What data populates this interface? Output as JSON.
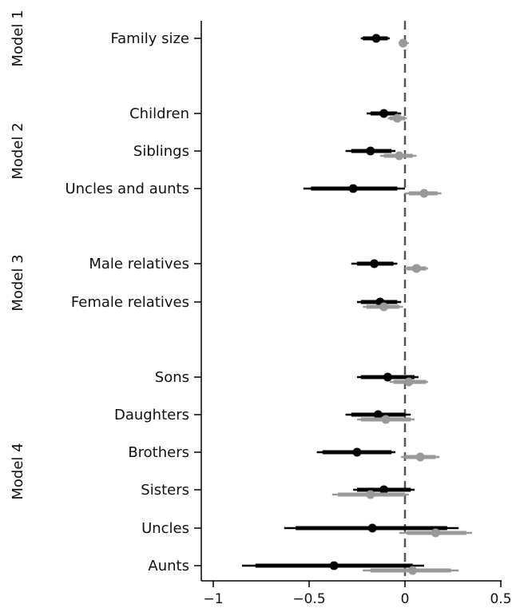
{
  "chart_data": {
    "type": "coefficient-plot",
    "xlim": [
      -1.0,
      0.5
    ],
    "x_ticks": [
      -1,
      -0.5,
      0,
      0.5
    ],
    "x_tick_labels": [
      "−1",
      "−0.5",
      "0",
      "0.5"
    ],
    "reference_line_x": 0,
    "series": [
      {
        "color": "#000000"
      },
      {
        "color": "#999999"
      }
    ],
    "models": [
      {
        "label": "Model 1",
        "rows": [
          "Family size"
        ]
      },
      {
        "label": "Model 2",
        "rows": [
          "Children",
          "Siblings",
          "Uncles and aunts"
        ]
      },
      {
        "label": "Model 3",
        "rows": [
          "Male relatives",
          "Female relatives"
        ]
      },
      {
        "label": "Model 4",
        "rows": [
          "Sons",
          "Daughters",
          "Brothers",
          "Sisters",
          "Uncles",
          "Aunts"
        ]
      }
    ],
    "rows": [
      {
        "label": "Family size",
        "estimates": [
          {
            "est": -0.15,
            "ci90": [
              -0.22,
              -0.09
            ],
            "ci95": [
              -0.23,
              -0.08
            ]
          },
          {
            "est": -0.01,
            "ci90": [
              -0.02,
              0.01
            ],
            "ci95": [
              -0.03,
              0.02
            ]
          }
        ]
      },
      {
        "label": "Children",
        "estimates": [
          {
            "est": -0.11,
            "ci90": [
              -0.18,
              -0.04
            ],
            "ci95": [
              -0.2,
              -0.02
            ]
          },
          {
            "est": -0.04,
            "ci90": [
              -0.08,
              0.0
            ],
            "ci95": [
              -0.09,
              0.01
            ]
          }
        ]
      },
      {
        "label": "Siblings",
        "estimates": [
          {
            "est": -0.18,
            "ci90": [
              -0.28,
              -0.07
            ],
            "ci95": [
              -0.31,
              -0.05
            ]
          },
          {
            "est": -0.03,
            "ci90": [
              -0.11,
              0.04
            ],
            "ci95": [
              -0.13,
              0.06
            ]
          }
        ]
      },
      {
        "label": "Uncles and aunts",
        "estimates": [
          {
            "est": -0.27,
            "ci90": [
              -0.49,
              -0.04
            ],
            "ci95": [
              -0.53,
              0.0
            ]
          },
          {
            "est": 0.1,
            "ci90": [
              0.02,
              0.17
            ],
            "ci95": [
              0.0,
              0.19
            ]
          }
        ]
      },
      {
        "label": "Male relatives",
        "estimates": [
          {
            "est": -0.16,
            "ci90": [
              -0.25,
              -0.06
            ],
            "ci95": [
              -0.28,
              -0.04
            ]
          },
          {
            "est": 0.06,
            "ci90": [
              0.01,
              0.11
            ],
            "ci95": [
              0.0,
              0.12
            ]
          }
        ]
      },
      {
        "label": "Female relatives",
        "estimates": [
          {
            "est": -0.13,
            "ci90": [
              -0.23,
              -0.04
            ],
            "ci95": [
              -0.25,
              -0.02
            ]
          },
          {
            "est": -0.11,
            "ci90": [
              -0.2,
              -0.03
            ],
            "ci95": [
              -0.22,
              -0.01
            ]
          }
        ]
      },
      {
        "label": "Sons",
        "estimates": [
          {
            "est": -0.09,
            "ci90": [
              -0.23,
              0.05
            ],
            "ci95": [
              -0.25,
              0.07
            ]
          },
          {
            "est": 0.02,
            "ci90": [
              -0.06,
              0.11
            ],
            "ci95": [
              -0.08,
              0.12
            ]
          }
        ]
      },
      {
        "label": "Daughters",
        "estimates": [
          {
            "est": -0.14,
            "ci90": [
              -0.28,
              0.0
            ],
            "ci95": [
              -0.31,
              0.03
            ]
          },
          {
            "est": -0.1,
            "ci90": [
              -0.23,
              0.03
            ],
            "ci95": [
              -0.25,
              0.05
            ]
          }
        ]
      },
      {
        "label": "Brothers",
        "estimates": [
          {
            "est": -0.25,
            "ci90": [
              -0.43,
              -0.07
            ],
            "ci95": [
              -0.46,
              -0.05
            ]
          },
          {
            "est": 0.08,
            "ci90": [
              0.0,
              0.16
            ],
            "ci95": [
              -0.02,
              0.18
            ]
          }
        ]
      },
      {
        "label": "Sisters",
        "estimates": [
          {
            "est": -0.11,
            "ci90": [
              -0.25,
              0.03
            ],
            "ci95": [
              -0.27,
              0.05
            ]
          },
          {
            "est": -0.18,
            "ci90": [
              -0.35,
              0.0
            ],
            "ci95": [
              -0.38,
              0.02
            ]
          }
        ]
      },
      {
        "label": "Uncles",
        "estimates": [
          {
            "est": -0.17,
            "ci90": [
              -0.57,
              0.22
            ],
            "ci95": [
              -0.63,
              0.28
            ]
          },
          {
            "est": 0.16,
            "ci90": [
              0.01,
              0.32
            ],
            "ci95": [
              -0.03,
              0.35
            ]
          }
        ]
      },
      {
        "label": "Aunts",
        "estimates": [
          {
            "est": -0.37,
            "ci90": [
              -0.78,
              0.04
            ],
            "ci95": [
              -0.85,
              0.1
            ]
          },
          {
            "est": 0.04,
            "ci90": [
              -0.18,
              0.24
            ],
            "ci95": [
              -0.22,
              0.28
            ]
          }
        ]
      }
    ]
  }
}
